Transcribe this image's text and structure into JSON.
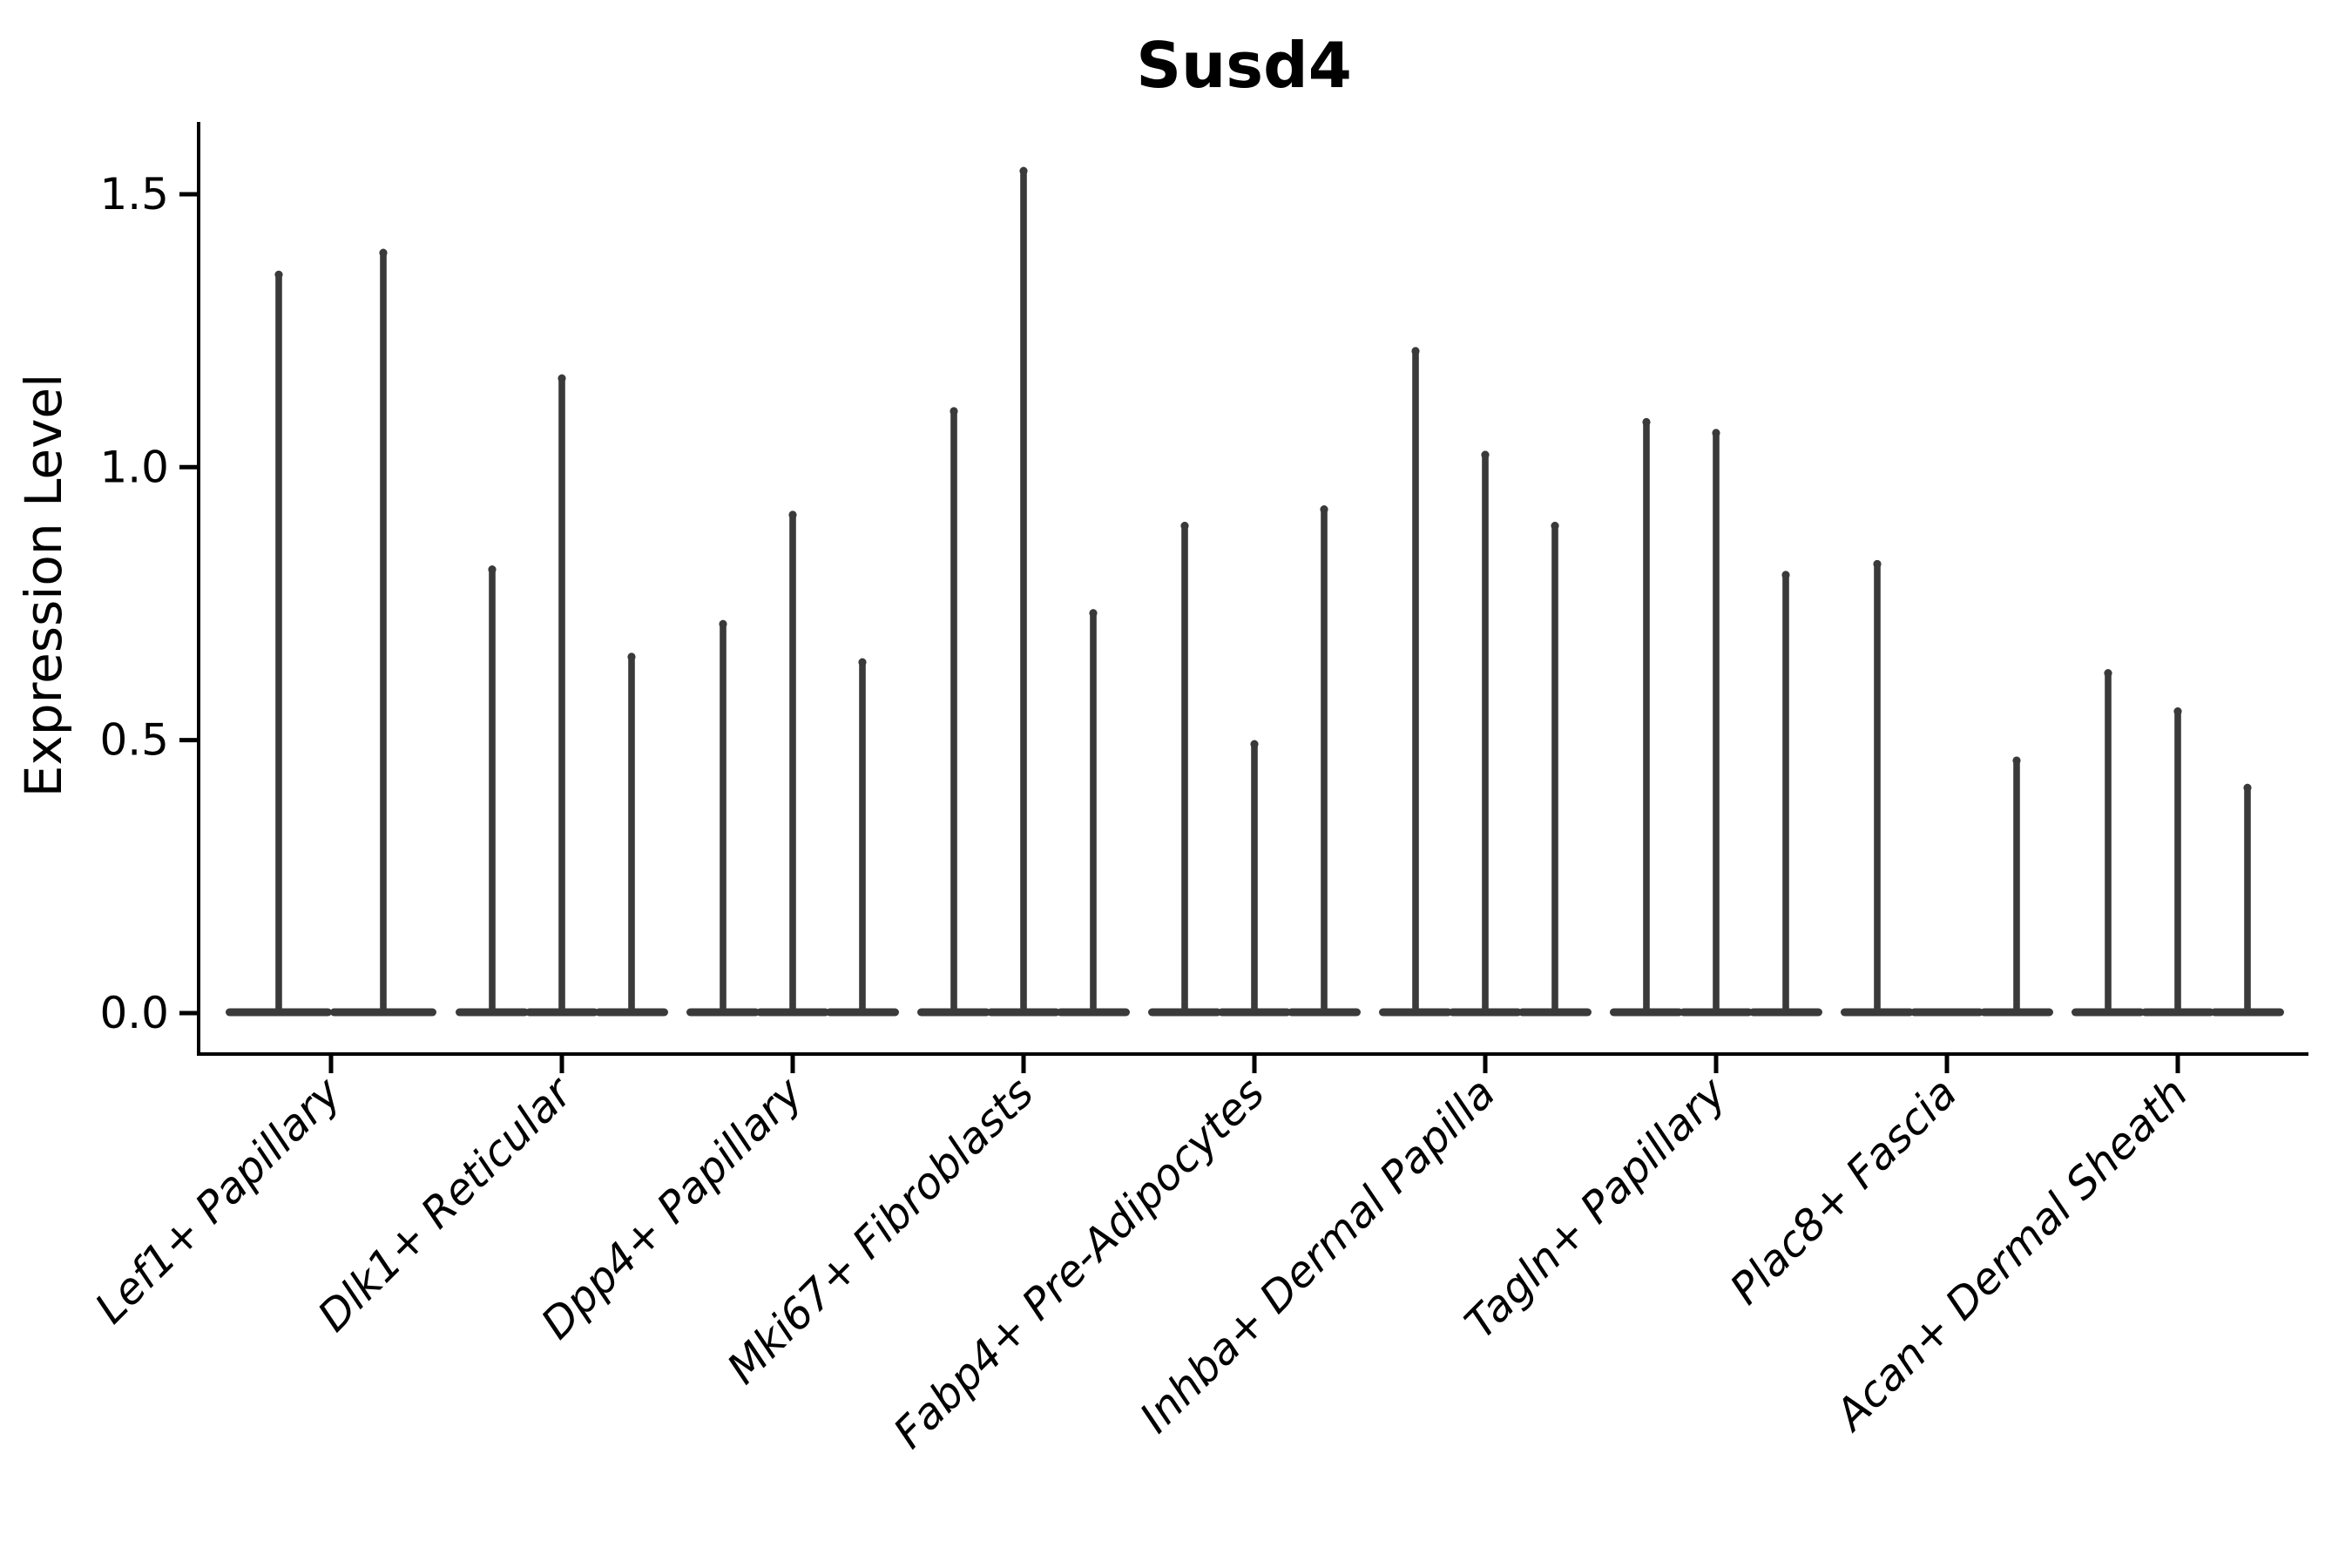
{
  "figure": {
    "background": "#ffffff"
  },
  "chart_data": {
    "type": "violin",
    "title": "Susd4",
    "xlabel": "",
    "ylabel": "Expression Level",
    "ytick_labels": [
      "0.0",
      "0.5",
      "1.0",
      "1.5"
    ],
    "ytick_values": [
      0.0,
      0.5,
      1.0,
      1.5
    ],
    "ylim": [
      -0.075,
      1.63
    ],
    "grid": false,
    "legend": "none",
    "violin_style": "needle-thin violins; dense mass at 0 (flat base disc) with a thin spike up to the max expression value",
    "violin_color": "#3a3a3a",
    "axis_color": "#000000",
    "categories": [
      {
        "label": "Lef1+ Papillary",
        "violin_peaks": [
          1.36,
          1.4
        ]
      },
      {
        "label": "Dlk1+ Reticular",
        "violin_peaks": [
          0.82,
          1.17,
          0.66
        ]
      },
      {
        "label": "Dpp4+ Papillary",
        "violin_peaks": [
          0.72,
          0.92,
          0.65
        ]
      },
      {
        "label": "Mki67+ Fibroblasts",
        "violin_peaks": [
          1.11,
          1.55,
          0.74
        ]
      },
      {
        "label": "Fabp4+ Pre-Adipocytes",
        "violin_peaks": [
          0.9,
          0.5,
          0.93
        ]
      },
      {
        "label": "Inhba+ Dermal Papilla",
        "violin_peaks": [
          1.22,
          1.03,
          0.9
        ]
      },
      {
        "label": "Tagln+ Papillary",
        "violin_peaks": [
          1.09,
          1.07,
          0.81
        ]
      },
      {
        "label": "Plac8+ Fascia",
        "violin_peaks": [
          0.83,
          0.0,
          0.47
        ]
      },
      {
        "label": "Acan+ Dermal Sheath",
        "violin_peaks": [
          0.63,
          0.56,
          0.42
        ]
      }
    ]
  }
}
